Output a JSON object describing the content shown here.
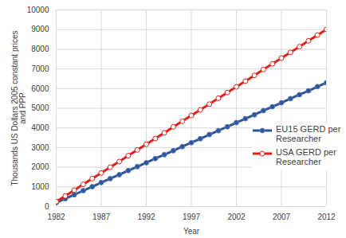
{
  "chart_data": {
    "type": "line",
    "x_label": "Year",
    "y_label": "Thousands US Dollars 2005 constant prices\nand PPP",
    "x": [
      1982,
      1983,
      1984,
      1985,
      1986,
      1987,
      1988,
      1989,
      1990,
      1991,
      1992,
      1993,
      1994,
      1995,
      1996,
      1997,
      1998,
      1999,
      2000,
      2001,
      2002,
      2003,
      2004,
      2005,
      2006,
      2007,
      2008,
      2009,
      2010,
      2011,
      2012
    ],
    "series": [
      {
        "name": "EU15 GERD per Researcher",
        "color": "#2f5597",
        "marker": "circle",
        "values": [
          200,
          400,
          600,
          810,
          1010,
          1220,
          1420,
          1620,
          1830,
          2030,
          2230,
          2440,
          2640,
          2840,
          3050,
          3250,
          3450,
          3660,
          3860,
          4060,
          4270,
          4470,
          4670,
          4880,
          5080,
          5280,
          5490,
          5690,
          5890,
          6100,
          6300
        ]
      },
      {
        "name": "USA GERD per Researcher",
        "color": "#e0201b",
        "marker": "open_circle",
        "values": [
          250,
          540,
          830,
          1130,
          1420,
          1710,
          2000,
          2290,
          2590,
          2880,
          3170,
          3460,
          3750,
          4050,
          4340,
          4630,
          4920,
          5210,
          5510,
          5800,
          6090,
          6380,
          6670,
          6970,
          7260,
          7550,
          7840,
          8130,
          8430,
          8720,
          9010
        ]
      }
    ],
    "xlim": [
      1982,
      2012
    ],
    "xticks": [
      1982,
      1987,
      1992,
      1997,
      2002,
      2007,
      2012
    ],
    "ylim": [
      0,
      10000
    ],
    "yticks": [
      0,
      1000,
      2000,
      3000,
      4000,
      5000,
      6000,
      7000,
      8000,
      9000,
      10000
    ],
    "grid": true,
    "legend": "right"
  }
}
